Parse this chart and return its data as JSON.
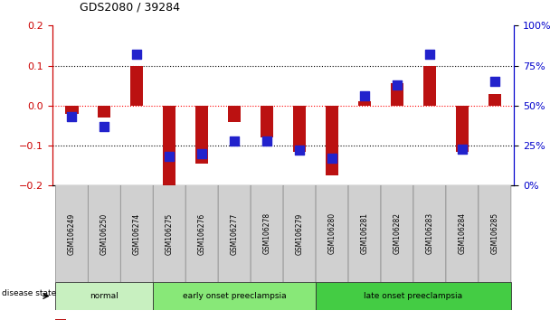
{
  "title": "GDS2080 / 39284",
  "samples": [
    "GSM106249",
    "GSM106250",
    "GSM106274",
    "GSM106275",
    "GSM106276",
    "GSM106277",
    "GSM106278",
    "GSM106279",
    "GSM106280",
    "GSM106281",
    "GSM106282",
    "GSM106283",
    "GSM106284",
    "GSM106285"
  ],
  "log10_ratio": [
    -0.02,
    -0.03,
    0.1,
    -0.2,
    -0.145,
    -0.04,
    -0.08,
    -0.115,
    -0.175,
    0.01,
    0.055,
    0.1,
    -0.115,
    0.03
  ],
  "percentile_rank": [
    43,
    37,
    82,
    18,
    20,
    28,
    28,
    22,
    17,
    56,
    63,
    82,
    23,
    65
  ],
  "groups": [
    {
      "label": "normal",
      "start": 0,
      "end": 3,
      "color": "#c8f0c0"
    },
    {
      "label": "early onset preeclampsia",
      "start": 3,
      "end": 8,
      "color": "#88e878"
    },
    {
      "label": "late onset preeclampsia",
      "start": 8,
      "end": 14,
      "color": "#44cc44"
    }
  ],
  "bar_color": "#bb1111",
  "dot_color": "#2222cc",
  "ylim_left": [
    -0.2,
    0.2
  ],
  "ylim_right": [
    0,
    100
  ],
  "left_yticks": [
    -0.2,
    -0.1,
    0,
    0.1,
    0.2
  ],
  "right_yticks": [
    0,
    25,
    50,
    75,
    100
  ],
  "right_yticklabels": [
    "0%",
    "25%",
    "50%",
    "75%",
    "100%"
  ],
  "ylabel_left_color": "#cc0000",
  "ylabel_right_color": "#0000cc",
  "bar_width": 0.4,
  "dot_size": 45,
  "disease_state_label": "disease state",
  "background_color": "#ffffff",
  "tick_bg_color": "#d8d8d8",
  "group_colors": [
    "#c8f0c0",
    "#88e878",
    "#44cc44"
  ]
}
